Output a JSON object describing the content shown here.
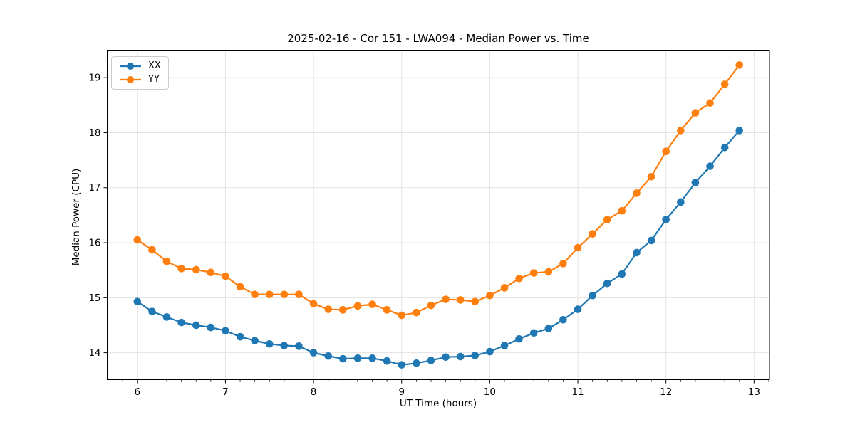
{
  "page": {
    "background": "#ffffff"
  },
  "chart_data": {
    "type": "line",
    "title": "2025-02-16 - Cor 151 - LWA094 - Median Power vs. Time",
    "xlabel": "UT Time (hours)",
    "ylabel": "Median Power (CPU)",
    "xlim": [
      5.658,
      13.175
    ],
    "ylim": [
      13.51,
      19.5
    ],
    "x_ticks": [
      6,
      7,
      8,
      9,
      10,
      11,
      12,
      13
    ],
    "y_ticks": [
      14,
      15,
      16,
      17,
      18,
      19
    ],
    "x_minor_per_unit": 6,
    "grid": true,
    "grid_color": "#e3e3e3",
    "axis_color": "#000000",
    "legend_position": "upper left",
    "x": [
      6.0,
      6.167,
      6.333,
      6.5,
      6.667,
      6.833,
      7.0,
      7.167,
      7.333,
      7.5,
      7.667,
      7.833,
      8.0,
      8.167,
      8.333,
      8.5,
      8.667,
      8.833,
      9.0,
      9.167,
      9.333,
      9.5,
      9.667,
      9.833,
      10.0,
      10.167,
      10.333,
      10.5,
      10.667,
      10.833,
      11.0,
      11.167,
      11.333,
      11.5,
      11.667,
      11.833,
      12.0,
      12.167,
      12.333,
      12.5,
      12.667,
      12.833
    ],
    "series": [
      {
        "name": "XX",
        "color": "#1f77b4",
        "values": [
          14.93,
          14.75,
          14.65,
          14.55,
          14.5,
          14.46,
          14.4,
          14.29,
          14.22,
          14.16,
          14.13,
          14.12,
          14.0,
          13.94,
          13.89,
          13.9,
          13.9,
          13.85,
          13.78,
          13.81,
          13.86,
          13.92,
          13.93,
          13.95,
          14.02,
          14.13,
          14.25,
          14.36,
          14.44,
          14.6,
          14.79,
          15.04,
          15.26,
          15.43,
          15.82,
          16.04,
          16.42,
          16.74,
          17.09,
          17.39,
          17.73,
          18.04
        ]
      },
      {
        "name": "YY",
        "color": "#ff7f0e",
        "values": [
          16.05,
          15.87,
          15.66,
          15.53,
          15.51,
          15.46,
          15.39,
          15.2,
          15.06,
          15.06,
          15.06,
          15.06,
          14.89,
          14.79,
          14.78,
          14.85,
          14.88,
          14.78,
          14.68,
          14.73,
          14.86,
          14.97,
          14.96,
          14.93,
          15.04,
          15.18,
          15.35,
          15.45,
          15.47,
          15.62,
          15.91,
          16.16,
          16.42,
          16.58,
          16.9,
          17.2,
          17.66,
          18.04,
          18.36,
          18.54,
          18.88,
          19.23
        ]
      }
    ]
  }
}
